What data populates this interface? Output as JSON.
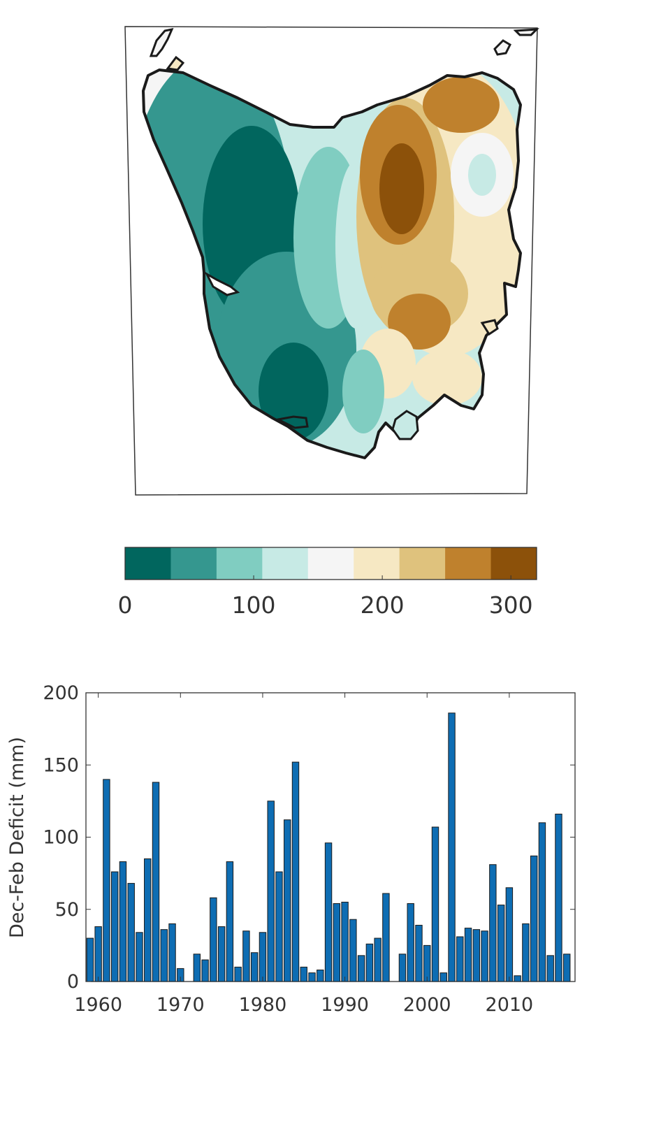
{
  "colorbar": {
    "colors": [
      "#01665e",
      "#35978f",
      "#80cdc1",
      "#c7eae5",
      "#f5f5f5",
      "#f6e8c3",
      "#dfc27d",
      "#bf812d",
      "#8c510a"
    ],
    "ticks": [
      "0",
      "100",
      "200",
      "300"
    ],
    "tick_values": [
      0,
      100,
      200,
      300
    ],
    "range": [
      0,
      320
    ]
  },
  "map": {
    "outline_color": "#111111",
    "coast_color": "#1a1a1a"
  },
  "chart_data": {
    "type": "bar",
    "title": "",
    "xlabel": "",
    "ylabel": "Dec-Feb Deficit (mm)",
    "bar_color": "#0e6db3",
    "xlim": [
      1958.5,
      2018
    ],
    "ylim": [
      0,
      200
    ],
    "xticks": [
      1960,
      1970,
      1980,
      1990,
      2000,
      2010
    ],
    "xtick_labels": [
      "1960",
      "1970",
      "1980",
      "1990",
      "2000",
      "2010"
    ],
    "yticks": [
      0,
      50,
      100,
      150,
      200
    ],
    "ytick_labels": [
      "0",
      "50",
      "100",
      "150",
      "200"
    ],
    "x": [
      1959,
      1960,
      1961,
      1962,
      1963,
      1964,
      1965,
      1966,
      1967,
      1968,
      1969,
      1970,
      1971,
      1972,
      1973,
      1974,
      1975,
      1976,
      1977,
      1978,
      1979,
      1980,
      1981,
      1982,
      1983,
      1984,
      1985,
      1986,
      1987,
      1988,
      1989,
      1990,
      1991,
      1992,
      1993,
      1994,
      1995,
      1996,
      1997,
      1998,
      1999,
      2000,
      2001,
      2002,
      2003,
      2004,
      2005,
      2006,
      2007,
      2008,
      2009,
      2010,
      2011,
      2012,
      2013,
      2014,
      2015,
      2016,
      2017
    ],
    "values": [
      30,
      38,
      140,
      76,
      83,
      68,
      34,
      85,
      138,
      36,
      40,
      9,
      0,
      19,
      15,
      58,
      38,
      83,
      10,
      35,
      20,
      34,
      125,
      76,
      112,
      152,
      10,
      6,
      8,
      96,
      54,
      55,
      43,
      18,
      26,
      30,
      61,
      0,
      19,
      54,
      39,
      25,
      107,
      6,
      186,
      31,
      37,
      36,
      35,
      81,
      53,
      65,
      4,
      40,
      87,
      110,
      18,
      116,
      19
    ]
  }
}
